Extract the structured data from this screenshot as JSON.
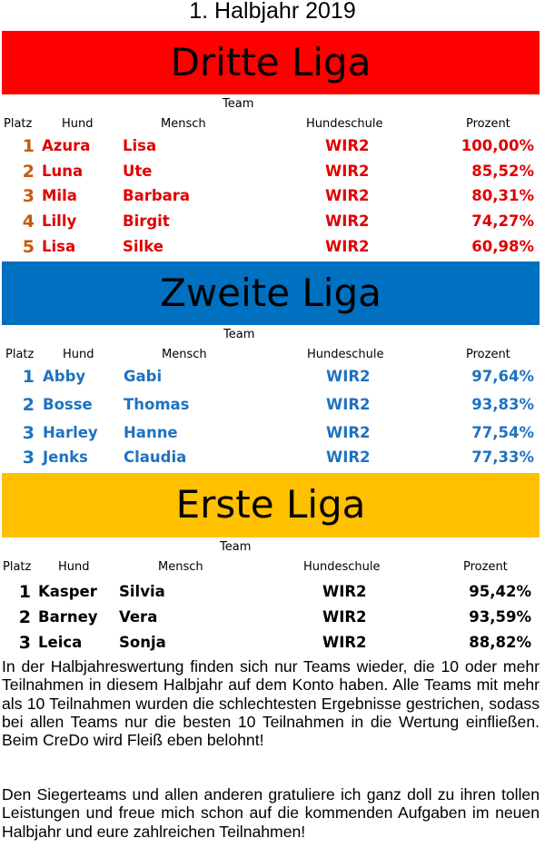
{
  "title": "1. Halbjahr 2019",
  "leagues": [
    {
      "name": "Dritte Liga",
      "team_label": "Team",
      "headers": {
        "platz": "Platz",
        "hund": "Hund",
        "mensch": "Mensch",
        "schule": "Hundeschule",
        "prozent": "Prozent"
      },
      "rows": [
        {
          "platz": "1",
          "hund": "Azura",
          "mensch": "Lisa",
          "schule": "WIR2",
          "prozent": "100,00%"
        },
        {
          "platz": "2",
          "hund": "Luna",
          "mensch": "Ute",
          "schule": "WIR2",
          "prozent": "85,52%"
        },
        {
          "platz": "3",
          "hund": "Mila",
          "mensch": "Barbara",
          "schule": "WIR2",
          "prozent": "80,31%"
        },
        {
          "platz": "4",
          "hund": "Lilly",
          "mensch": "Birgit",
          "schule": "WIR2",
          "prozent": "74,27%"
        },
        {
          "platz": "5",
          "hund": "Lisa",
          "mensch": "Silke",
          "schule": "WIR2",
          "prozent": "60,98%"
        }
      ]
    },
    {
      "name": "Zweite Liga",
      "team_label": "Team",
      "headers": {
        "platz": "Platz",
        "hund": "Hund",
        "mensch": "Mensch",
        "schule": "Hundeschule",
        "prozent": "Prozent"
      },
      "rows": [
        {
          "platz": "1",
          "hund": "Abby",
          "mensch": "Gabi",
          "schule": "WIR2",
          "prozent": "97,64%"
        },
        {
          "platz": "2",
          "hund": "Bosse",
          "mensch": "Thomas",
          "schule": "WIR2",
          "prozent": "93,83%"
        },
        {
          "platz": "3",
          "hund": "Harley",
          "mensch": "Hanne",
          "schule": "WIR2",
          "prozent": "77,54%"
        },
        {
          "platz": "3",
          "hund": "Jenks",
          "mensch": "Claudia",
          "schule": "WIR2",
          "prozent": "77,33%"
        }
      ]
    },
    {
      "name": "Erste Liga",
      "team_label": "Team",
      "headers": {
        "platz": "Platz",
        "hund": "Hund",
        "mensch": "Mensch",
        "schule": "Hundeschule",
        "prozent": "Prozent"
      },
      "rows": [
        {
          "platz": "1",
          "hund": "Kasper",
          "mensch": "Silvia",
          "schule": "WIR2",
          "prozent": "95,42%"
        },
        {
          "platz": "2",
          "hund": "Barney",
          "mensch": "Vera",
          "schule": "WIR2",
          "prozent": "93,59%"
        },
        {
          "platz": "3",
          "hund": "Leica",
          "mensch": "Sonja",
          "schule": "WIR2",
          "prozent": "88,82%"
        }
      ]
    }
  ],
  "paragraphs": [
    "In der Halbjahreswertung finden sich nur Teams wieder, die 10 oder mehr Teilnahmen in diesem Halbjahr auf dem Konto haben. Alle Teams mit mehr als 10 Teilnahmen wurden die schlechtesten Ergebnisse gestrichen, sodass bei allen Teams nur die besten 10 Teilnahmen in die Wertung einfließen. Beim CreDo wird Fleiß eben belohnt!",
    "Den Siegerteams und allen anderen gratuliere ich ganz doll zu ihren tollen Leistungen und freue mich schon auf die kommenden Aufgaben im neuen Halbjahr und eure zahlreichen Teilnahmen!"
  ],
  "colors": {
    "dritte": "#ff0000",
    "zweite": "#0070c0",
    "erste": "#ffc000"
  }
}
